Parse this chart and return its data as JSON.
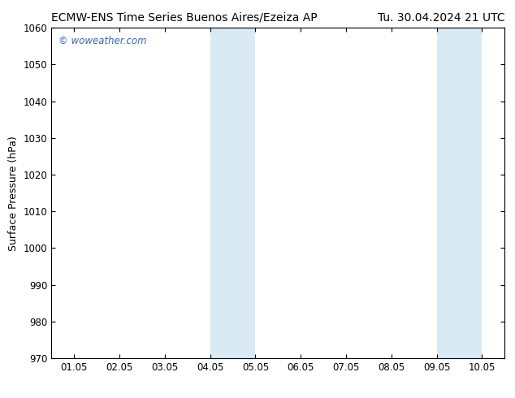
{
  "title_left": "ECMW-ENS Time Series Buenos Aires/Ezeiza AP",
  "title_right": "Tu. 30.04.2024 21 UTC",
  "ylabel": "Surface Pressure (hPa)",
  "ylim": [
    970,
    1060
  ],
  "yticks": [
    970,
    980,
    990,
    1000,
    1010,
    1020,
    1030,
    1040,
    1050,
    1060
  ],
  "xtick_labels": [
    "01.05",
    "02.05",
    "03.05",
    "04.05",
    "05.05",
    "06.05",
    "07.05",
    "08.05",
    "09.05",
    "10.05"
  ],
  "xtick_positions": [
    0,
    1,
    2,
    3,
    4,
    5,
    6,
    7,
    8,
    9
  ],
  "x_min": -0.5,
  "x_max": 9.5,
  "shaded_bands": [
    {
      "x_start": 3.0,
      "x_end": 4.0,
      "color": "#daeaf5"
    },
    {
      "x_start": 8.0,
      "x_end": 9.0,
      "color": "#daeaf5"
    }
  ],
  "background_color": "#ffffff",
  "plot_bg_color": "#ffffff",
  "watermark": "© woweather.com",
  "watermark_color": "#3366bb",
  "title_fontsize": 10,
  "axis_fontsize": 9,
  "tick_fontsize": 8.5,
  "tick_direction": "in"
}
